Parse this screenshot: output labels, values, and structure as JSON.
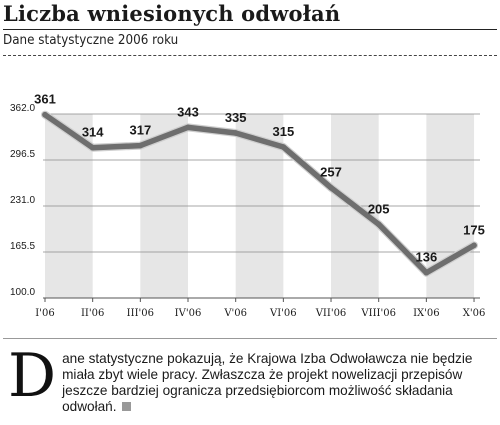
{
  "header": {
    "title": "Liczba wniesionych odwołań",
    "subtitle": "Dane statystyczne 2006 roku"
  },
  "chart_data": {
    "type": "line",
    "categories": [
      "I'06",
      "II'06",
      "III'06",
      "IV'06",
      "V'06",
      "VI'06",
      "VII'06",
      "VIII'06",
      "IX'06",
      "X'06"
    ],
    "values": [
      361,
      314,
      317,
      343,
      335,
      315,
      257,
      205,
      136,
      175
    ],
    "data_labels": [
      "361",
      "314",
      "317",
      "343",
      "335",
      "315",
      "257",
      "205",
      "136",
      "175"
    ],
    "y_ticks": [
      100.0,
      165.5,
      231.0,
      296.5,
      362.0
    ],
    "y_tick_labels": [
      "100.0",
      "165.5",
      "231.0",
      "296.5",
      "362.0"
    ],
    "ylim": [
      100,
      362
    ],
    "title": "Liczba wniesionych odwołań",
    "xlabel": "",
    "ylabel": "",
    "grid": true,
    "alternating_bands": true,
    "colors": {
      "line": "#6e6e6e",
      "band": "#e6e6e6",
      "grid": "#8a8a8a",
      "text": "#1a1a1a"
    }
  },
  "article": {
    "dropcap": "D",
    "text": "ane statystyczne pokazują, że Krajowa Izba Odwoławcza nie będzie miała zbyt wiele pracy. Zwłaszcza że projekt nowelizacji przepisów jeszcze bardziej ogranicza przedsiębiorcom możliwość składania odwołań."
  }
}
